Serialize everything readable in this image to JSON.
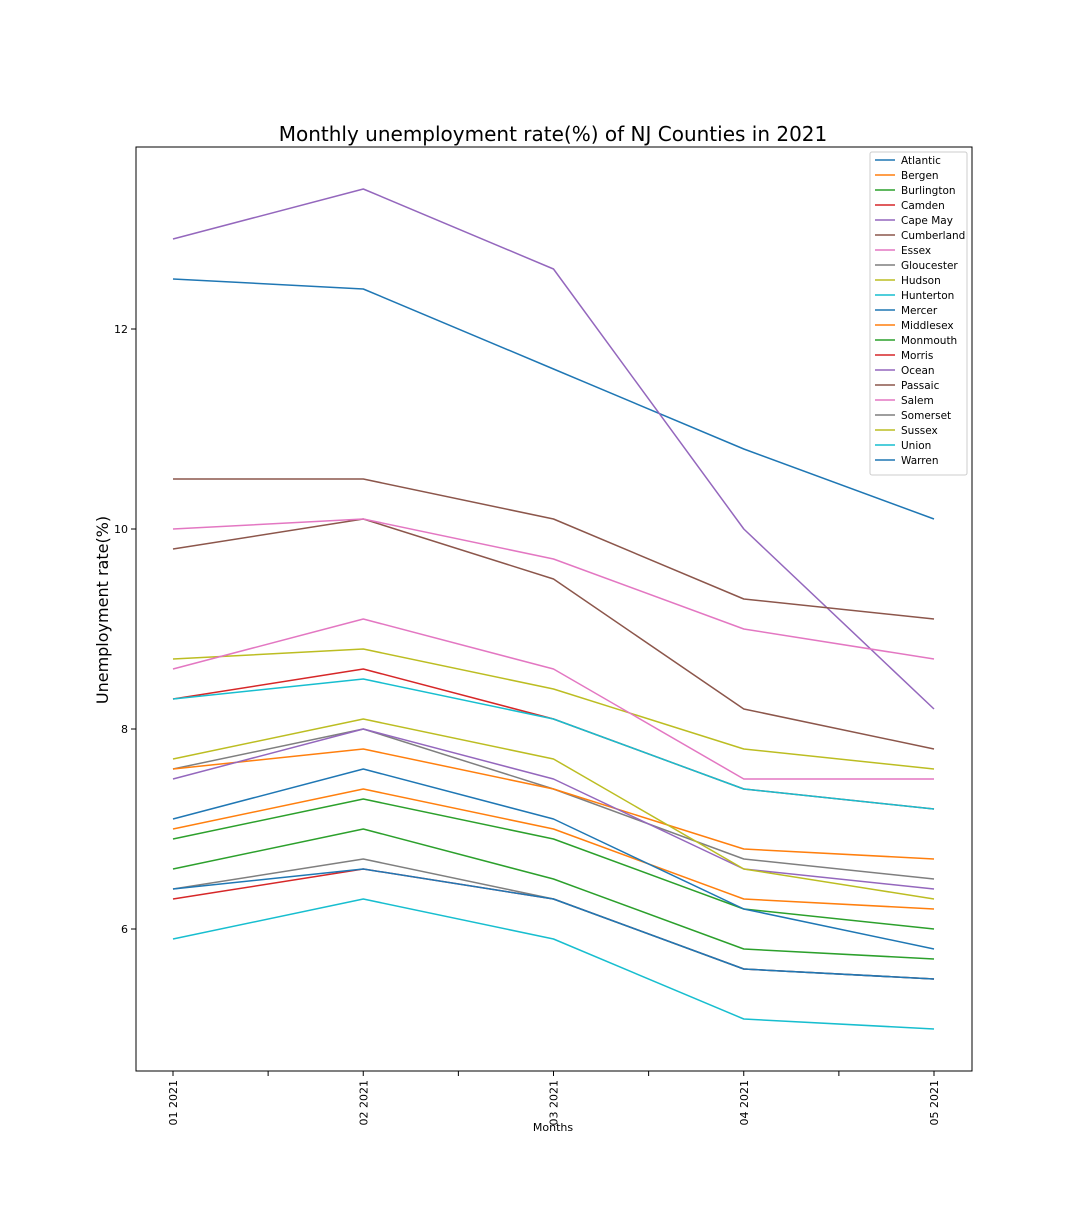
{
  "chart_data": {
    "type": "line",
    "title": "Monthly unemployment rate(%) of NJ Counties in 2021",
    "xlabel": "Months",
    "ylabel": "Unemployment rate(%)",
    "categories": [
      "01 2021",
      "02 2021",
      "03 2021",
      "04 2021",
      "05 2021"
    ],
    "ylim": [
      4.58,
      13.82
    ],
    "yticks": [
      6,
      8,
      10,
      12
    ],
    "grid": false,
    "legend_position": "top-right",
    "series": [
      {
        "name": "Atlantic",
        "color": "#1f77b4",
        "values": [
          12.5,
          12.4,
          11.6,
          10.8,
          10.1
        ]
      },
      {
        "name": "Bergen",
        "color": "#ff7f0e",
        "values": [
          7.0,
          7.4,
          7.0,
          6.3,
          6.2
        ]
      },
      {
        "name": "Burlington",
        "color": "#2ca02c",
        "values": [
          6.9,
          7.3,
          6.9,
          6.2,
          6.0
        ]
      },
      {
        "name": "Camden",
        "color": "#d62728",
        "values": [
          8.3,
          8.6,
          8.1,
          7.4,
          7.2
        ]
      },
      {
        "name": "Cape May",
        "color": "#9467bd",
        "values": [
          12.9,
          13.4,
          12.6,
          10.0,
          8.2
        ]
      },
      {
        "name": "Cumberland",
        "color": "#8c564b",
        "values": [
          9.8,
          10.1,
          9.5,
          8.2,
          7.8
        ]
      },
      {
        "name": "Essex",
        "color": "#e377c2",
        "values": [
          10.0,
          10.1,
          9.7,
          9.0,
          8.7
        ]
      },
      {
        "name": "Gloucester",
        "color": "#7f7f7f",
        "values": [
          7.6,
          8.0,
          7.4,
          6.7,
          6.5
        ]
      },
      {
        "name": "Hudson",
        "color": "#bcbd22",
        "values": [
          8.7,
          8.8,
          8.4,
          7.8,
          7.6
        ]
      },
      {
        "name": "Hunterton",
        "color": "#17becf",
        "values": [
          5.9,
          6.3,
          5.9,
          5.1,
          5.0
        ]
      },
      {
        "name": "Mercer",
        "color": "#1f77b4",
        "values": [
          7.1,
          7.6,
          7.1,
          6.2,
          5.8
        ]
      },
      {
        "name": "Middlesex",
        "color": "#ff7f0e",
        "values": [
          7.6,
          7.8,
          7.4,
          6.8,
          6.7
        ]
      },
      {
        "name": "Monmouth",
        "color": "#2ca02c",
        "values": [
          6.6,
          7.0,
          6.5,
          5.8,
          5.7
        ]
      },
      {
        "name": "Morris",
        "color": "#d62728",
        "values": [
          6.3,
          6.6,
          6.3,
          5.6,
          5.5
        ]
      },
      {
        "name": "Ocean",
        "color": "#9467bd",
        "values": [
          7.5,
          8.0,
          7.5,
          6.6,
          6.4
        ]
      },
      {
        "name": "Passaic",
        "color": "#8c564b",
        "values": [
          10.5,
          10.5,
          10.1,
          9.3,
          9.1
        ]
      },
      {
        "name": "Salem",
        "color": "#e377c2",
        "values": [
          8.6,
          9.1,
          8.6,
          7.5,
          7.5
        ]
      },
      {
        "name": "Somerset",
        "color": "#7f7f7f",
        "values": [
          6.4,
          6.7,
          6.3,
          5.6,
          5.5
        ]
      },
      {
        "name": "Sussex",
        "color": "#bcbd22",
        "values": [
          7.7,
          8.1,
          7.7,
          6.6,
          6.3
        ]
      },
      {
        "name": "Union",
        "color": "#17becf",
        "values": [
          8.3,
          8.5,
          8.1,
          7.4,
          7.2
        ]
      },
      {
        "name": "Warren",
        "color": "#1f77b4",
        "values": [
          6.4,
          6.6,
          6.3,
          5.6,
          5.5
        ]
      }
    ]
  }
}
